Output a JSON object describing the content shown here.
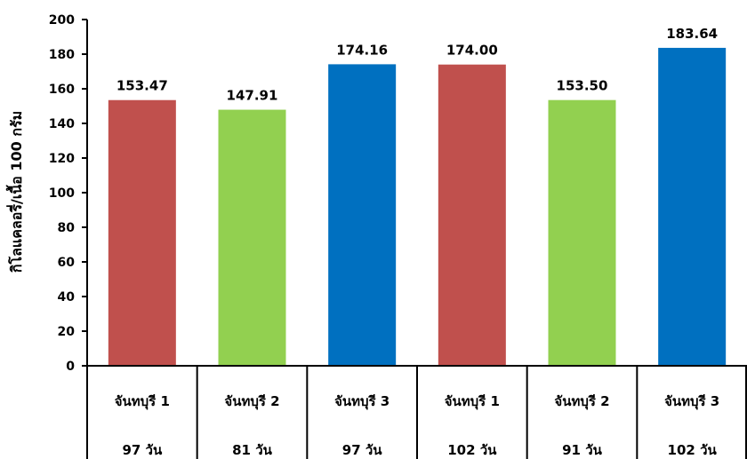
{
  "chart_data": {
    "type": "bar",
    "ylabel": "กิโลแคลอรี่/เนื้อ 100 กรัม",
    "ylim": [
      0,
      200
    ],
    "yticks": [
      0,
      20,
      40,
      60,
      80,
      100,
      120,
      140,
      160,
      180,
      200
    ],
    "grid": false,
    "categories": [
      {
        "line1": "จันทบุรี 1",
        "line2": "97 วัน"
      },
      {
        "line1": "จันทบุรี 2",
        "line2": "81 วัน"
      },
      {
        "line1": "จันทบุรี 3",
        "line2": "97 วัน"
      },
      {
        "line1": "จันทบุรี 1",
        "line2": "102 วัน"
      },
      {
        "line1": "จันทบุรี 2",
        "line2": "91 วัน"
      },
      {
        "line1": "จันทบุรี 3",
        "line2": "102 วัน"
      }
    ],
    "values": [
      153.47,
      147.91,
      174.16,
      174.0,
      153.5,
      183.64
    ],
    "value_labels": [
      "153.47",
      "147.91",
      "174.16",
      "174.00",
      "153.50",
      "183.64"
    ],
    "colors": [
      "#c0504d",
      "#92d050",
      "#0070c0",
      "#c0504d",
      "#92d050",
      "#0070c0"
    ]
  }
}
